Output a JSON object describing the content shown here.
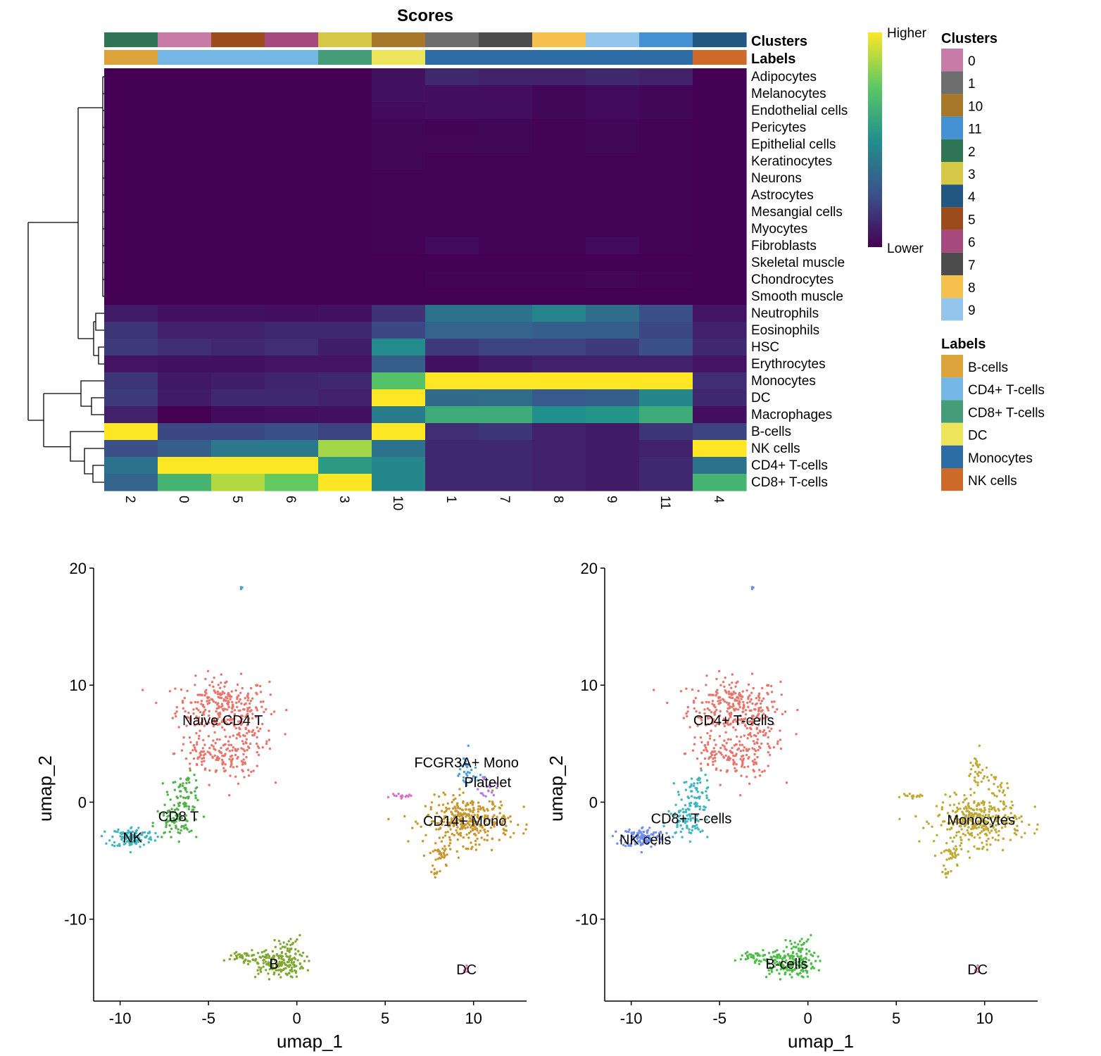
{
  "chart_data": [
    {
      "type": "heatmap",
      "title": "Scores",
      "columns": [
        "2",
        "0",
        "5",
        "6",
        "3",
        "10",
        "1",
        "7",
        "8",
        "9",
        "11",
        "4"
      ],
      "rows": [
        "Adipocytes",
        "Melanocytes",
        "Endothelial cells",
        "Pericytes",
        "Epithelial cells",
        "Keratinocytes",
        "Neurons",
        "Astrocytes",
        "Mesangial cells",
        "Myocytes",
        "Fibroblasts",
        "Skeletal muscle",
        "Chondrocytes",
        "Smooth muscle",
        "Neutrophils",
        "Eosinophils",
        "HSC",
        "Erythrocytes",
        "Monocytes",
        "DC",
        "Macrophages",
        "B-cells",
        "NK cells",
        "CD4+ T-cells",
        "CD8+ T-cells"
      ],
      "values": [
        [
          0.0,
          0.0,
          0.0,
          0.0,
          0.0,
          0.05,
          0.12,
          0.1,
          0.1,
          0.12,
          0.1,
          0.0
        ],
        [
          0.0,
          0.0,
          0.0,
          0.0,
          0.0,
          0.05,
          0.04,
          0.04,
          0.02,
          0.03,
          0.02,
          0.0
        ],
        [
          0.0,
          0.0,
          0.0,
          0.0,
          0.0,
          0.03,
          0.04,
          0.04,
          0.02,
          0.03,
          0.02,
          0.0
        ],
        [
          0.0,
          0.0,
          0.0,
          0.0,
          0.0,
          0.02,
          0.01,
          0.02,
          0.01,
          0.02,
          0.01,
          0.0
        ],
        [
          0.0,
          0.0,
          0.0,
          0.0,
          0.0,
          0.02,
          0.02,
          0.02,
          0.01,
          0.02,
          0.01,
          0.0
        ],
        [
          0.0,
          0.0,
          0.0,
          0.0,
          0.0,
          0.02,
          0.01,
          0.01,
          0.01,
          0.01,
          0.01,
          0.0
        ],
        [
          0.0,
          0.0,
          0.0,
          0.0,
          0.0,
          0.01,
          0.01,
          0.01,
          0.01,
          0.01,
          0.01,
          0.0
        ],
        [
          0.0,
          0.0,
          0.0,
          0.0,
          0.0,
          0.01,
          0.01,
          0.01,
          0.01,
          0.01,
          0.01,
          0.0
        ],
        [
          0.0,
          0.0,
          0.0,
          0.0,
          0.0,
          0.01,
          0.01,
          0.01,
          0.01,
          0.01,
          0.01,
          0.0
        ],
        [
          0.0,
          0.0,
          0.0,
          0.0,
          0.0,
          0.01,
          0.01,
          0.01,
          0.01,
          0.01,
          0.01,
          0.0
        ],
        [
          0.0,
          0.0,
          0.0,
          0.0,
          0.0,
          0.01,
          0.03,
          0.01,
          0.01,
          0.03,
          0.01,
          0.0
        ],
        [
          0.0,
          0.0,
          0.0,
          0.0,
          0.0,
          0.0,
          0.0,
          0.0,
          0.0,
          0.0,
          0.0,
          0.0
        ],
        [
          0.0,
          0.0,
          0.0,
          0.0,
          0.0,
          0.0,
          0.01,
          0.01,
          0.01,
          0.02,
          0.01,
          0.0
        ],
        [
          0.0,
          0.0,
          0.0,
          0.0,
          0.0,
          0.0,
          0.0,
          0.0,
          0.0,
          0.0,
          0.0,
          0.0
        ],
        [
          0.08,
          0.05,
          0.05,
          0.04,
          0.05,
          0.15,
          0.38,
          0.38,
          0.45,
          0.36,
          0.24,
          0.06
        ],
        [
          0.16,
          0.1,
          0.1,
          0.12,
          0.12,
          0.22,
          0.32,
          0.32,
          0.3,
          0.3,
          0.22,
          0.1
        ],
        [
          0.18,
          0.14,
          0.12,
          0.14,
          0.09,
          0.48,
          0.18,
          0.2,
          0.2,
          0.18,
          0.24,
          0.12
        ],
        [
          0.06,
          0.05,
          0.05,
          0.06,
          0.06,
          0.3,
          0.05,
          0.08,
          0.1,
          0.1,
          0.1,
          0.06
        ],
        [
          0.16,
          0.07,
          0.09,
          0.11,
          0.12,
          0.72,
          1.0,
          1.0,
          1.0,
          1.0,
          1.0,
          0.14
        ],
        [
          0.18,
          0.08,
          0.12,
          0.12,
          0.1,
          1.0,
          0.35,
          0.36,
          0.28,
          0.3,
          0.46,
          0.12
        ],
        [
          0.1,
          0.0,
          0.03,
          0.04,
          0.05,
          0.42,
          0.62,
          0.62,
          0.5,
          0.52,
          0.62,
          0.04
        ],
        [
          1.0,
          0.22,
          0.22,
          0.24,
          0.2,
          1.0,
          0.14,
          0.16,
          0.1,
          0.08,
          0.16,
          0.2
        ],
        [
          0.24,
          0.3,
          0.4,
          0.4,
          0.86,
          0.38,
          0.12,
          0.12,
          0.1,
          0.08,
          0.1,
          1.0
        ],
        [
          0.38,
          1.0,
          1.0,
          1.0,
          0.55,
          0.46,
          0.12,
          0.12,
          0.1,
          0.08,
          0.12,
          0.38
        ],
        [
          0.32,
          0.66,
          0.88,
          0.76,
          1.0,
          0.46,
          0.12,
          0.12,
          0.1,
          0.08,
          0.12,
          0.66
        ]
      ],
      "annotations": {
        "clusters_title": "Clusters",
        "labels_title": "Labels",
        "column_labels": [
          "B-cells",
          "CD4+ T-cells",
          "CD4+ T-cells",
          "CD4+ T-cells",
          "CD8+ T-cells",
          "DC",
          "Monocytes",
          "Monocytes",
          "Monocytes",
          "Monocytes",
          "Monocytes",
          "NK cells"
        ]
      },
      "colorbar": {
        "high_label": "Higher",
        "low_label": "Lower",
        "colors": [
          "#440154",
          "#3b528b",
          "#21908c",
          "#5dc963",
          "#fde725"
        ]
      },
      "cluster_colors": {
        "0": "#c97ba8",
        "1": "#6e6e6e",
        "10": "#a8782a",
        "11": "#4591d1",
        "2": "#2f7556",
        "3": "#d4c846",
        "4": "#235680",
        "5": "#9c4c1c",
        "6": "#a6497c",
        "7": "#4c4c4c",
        "8": "#f5c04c",
        "9": "#93c5ea"
      },
      "label_colors": {
        "B-cells": "#dba33a",
        "CD4+ T-cells": "#74b6e4",
        "CD8+ T-cells": "#459c78",
        "DC": "#ece45a",
        "Monocytes": "#2e6ca6",
        "NK cells": "#cd6a2a"
      },
      "legends": {
        "clusters": {
          "title": "Clusters",
          "entries": [
            "0",
            "1",
            "10",
            "11",
            "2",
            "3",
            "4",
            "5",
            "6",
            "7",
            "8",
            "9"
          ]
        },
        "labels": {
          "title": "Labels",
          "entries": [
            "B-cells",
            "CD4+ T-cells",
            "CD8+ T-cells",
            "DC",
            "Monocytes",
            "NK cells"
          ]
        }
      }
    },
    {
      "type": "scatter",
      "xlabel": "umap_1",
      "ylabel": "umap_2",
      "xlim": [
        -11.5,
        13.0
      ],
      "ylim": [
        -17.0,
        20.0
      ],
      "xticks": [
        -10,
        -5,
        0,
        5,
        10
      ],
      "yticks": [
        -10,
        0,
        10,
        20
      ],
      "tick_labels_x": [
        "-10",
        "-5",
        "0",
        "5",
        "10"
      ],
      "tick_labels_y": [
        "-10",
        "0",
        "10",
        "20"
      ],
      "clusters": [
        {
          "label": "Naive CD4 T",
          "color": "#e8756b",
          "center": [
            -4.2,
            7.0
          ]
        },
        {
          "label": "CD8 T",
          "color": "#52b14b",
          "center": [
            -6.7,
            -1.2
          ]
        },
        {
          "label": "NK",
          "color": "#3fb6c0",
          "center": [
            -9.3,
            -3.0
          ]
        },
        {
          "label": "B",
          "color": "#80a830",
          "center": [
            -1.3,
            -13.8
          ]
        },
        {
          "label": "CD14+ Mono",
          "color": "#c9962c",
          "center": [
            9.5,
            -1.6
          ]
        },
        {
          "label": "FCGR3A+ Mono",
          "color": "#4b9ee8",
          "center": [
            9.6,
            3.4
          ]
        },
        {
          "label": "Platelet",
          "color": "#b479e6",
          "center": [
            10.8,
            1.7
          ]
        },
        {
          "label": "DC",
          "color": "#e36fc0",
          "center": [
            9.6,
            -14.3
          ]
        }
      ]
    },
    {
      "type": "scatter",
      "xlabel": "umap_1",
      "ylabel": "umap_2",
      "xlim": [
        -11.5,
        13.0
      ],
      "ylim": [
        -17.0,
        20.0
      ],
      "xticks": [
        -10,
        -5,
        0,
        5,
        10
      ],
      "yticks": [
        -10,
        0,
        10,
        20
      ],
      "tick_labels_x": [
        "-10",
        "-5",
        "0",
        "5",
        "10"
      ],
      "tick_labels_y": [
        "-10",
        "0",
        "10",
        "20"
      ],
      "clusters": [
        {
          "label": "CD4+ T-cells",
          "color": "#e8756b",
          "center": [
            -4.2,
            7.0
          ]
        },
        {
          "label": "CD8+ T-cells",
          "color": "#3fb6c0",
          "center": [
            -6.6,
            -1.4
          ]
        },
        {
          "label": "NK cells",
          "color": "#6f8ff0",
          "center": [
            -9.2,
            -3.2
          ]
        },
        {
          "label": "B-cells",
          "color": "#4ebc48",
          "center": [
            -1.2,
            -13.8
          ]
        },
        {
          "label": "Monocytes",
          "color": "#c0aa36",
          "center": [
            9.8,
            -1.5
          ]
        },
        {
          "label": "DC",
          "color": "#e36fc0",
          "center": [
            9.6,
            -14.3
          ]
        }
      ]
    }
  ]
}
